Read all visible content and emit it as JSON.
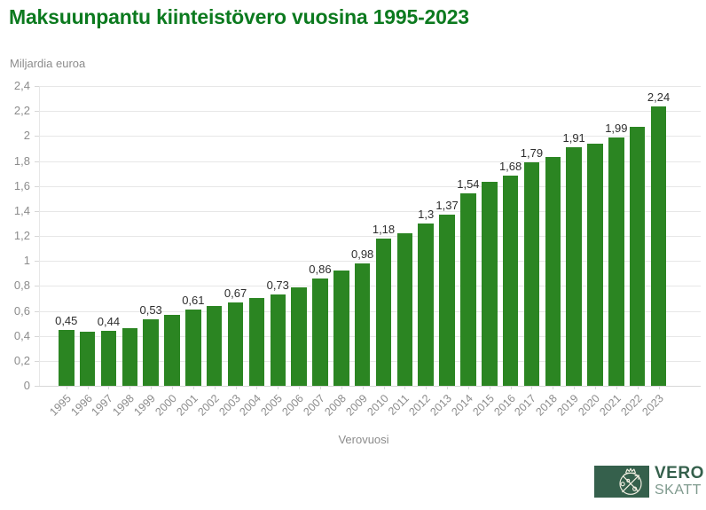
{
  "chart_data": {
    "type": "bar",
    "title": "Maksuunpantu kiinteistövero vuosina 1995-2023",
    "ylabel": "Miljardia euroa",
    "xlabel": "Verovuosi",
    "ylim": [
      0,
      2.4
    ],
    "ytick_step": 0.2,
    "ytick_labels": [
      "0",
      "0,2",
      "0,4",
      "0,6",
      "0,8",
      "1",
      "1,2",
      "1,4",
      "1,6",
      "1,8",
      "2",
      "2,2",
      "2,4"
    ],
    "grid": true,
    "legend": "none",
    "points": [
      {
        "year": "1995",
        "value": 0.45,
        "label": "0,45"
      },
      {
        "year": "1996",
        "value": 0.43,
        "label": null
      },
      {
        "year": "1997",
        "value": 0.44,
        "label": "0,44"
      },
      {
        "year": "1998",
        "value": 0.46,
        "label": null
      },
      {
        "year": "1999",
        "value": 0.53,
        "label": "0,53"
      },
      {
        "year": "2000",
        "value": 0.57,
        "label": null
      },
      {
        "year": "2001",
        "value": 0.61,
        "label": "0,61"
      },
      {
        "year": "2002",
        "value": 0.64,
        "label": null
      },
      {
        "year": "2003",
        "value": 0.67,
        "label": "0,67"
      },
      {
        "year": "2004",
        "value": 0.7,
        "label": null
      },
      {
        "year": "2005",
        "value": 0.73,
        "label": "0,73"
      },
      {
        "year": "2006",
        "value": 0.79,
        "label": null
      },
      {
        "year": "2007",
        "value": 0.86,
        "label": "0,86"
      },
      {
        "year": "2008",
        "value": 0.92,
        "label": null
      },
      {
        "year": "2009",
        "value": 0.98,
        "label": "0,98"
      },
      {
        "year": "2010",
        "value": 1.18,
        "label": "1,18"
      },
      {
        "year": "2011",
        "value": 1.22,
        "label": null
      },
      {
        "year": "2012",
        "value": 1.3,
        "label": "1,3"
      },
      {
        "year": "2013",
        "value": 1.37,
        "label": "1,37"
      },
      {
        "year": "2014",
        "value": 1.54,
        "label": "1,54"
      },
      {
        "year": "2015",
        "value": 1.63,
        "label": null
      },
      {
        "year": "2016",
        "value": 1.68,
        "label": "1,68"
      },
      {
        "year": "2017",
        "value": 1.79,
        "label": "1,79"
      },
      {
        "year": "2018",
        "value": 1.83,
        "label": null
      },
      {
        "year": "2019",
        "value": 1.91,
        "label": "1,91"
      },
      {
        "year": "2020",
        "value": 1.94,
        "label": null
      },
      {
        "year": "2021",
        "value": 1.99,
        "label": "1,99"
      },
      {
        "year": "2022",
        "value": 2.07,
        "label": null
      },
      {
        "year": "2023",
        "value": 2.24,
        "label": "2,24"
      }
    ]
  },
  "logo": {
    "line1": "VERO",
    "line2": "SKATT",
    "emblem": "vero-crest-icon"
  },
  "colors": {
    "title_green": "#0c7a1f",
    "bar_green": "#2b8522",
    "axis_text": "#8c8c8c",
    "value_text": "#2e2e2e",
    "grid_line": "#e7e7e7",
    "axis_line": "#d7d7d7",
    "logo_green": "#35604c",
    "logo_skatt": "#7f9a8e",
    "logo_emblem_stroke": "#f2efe2"
  }
}
